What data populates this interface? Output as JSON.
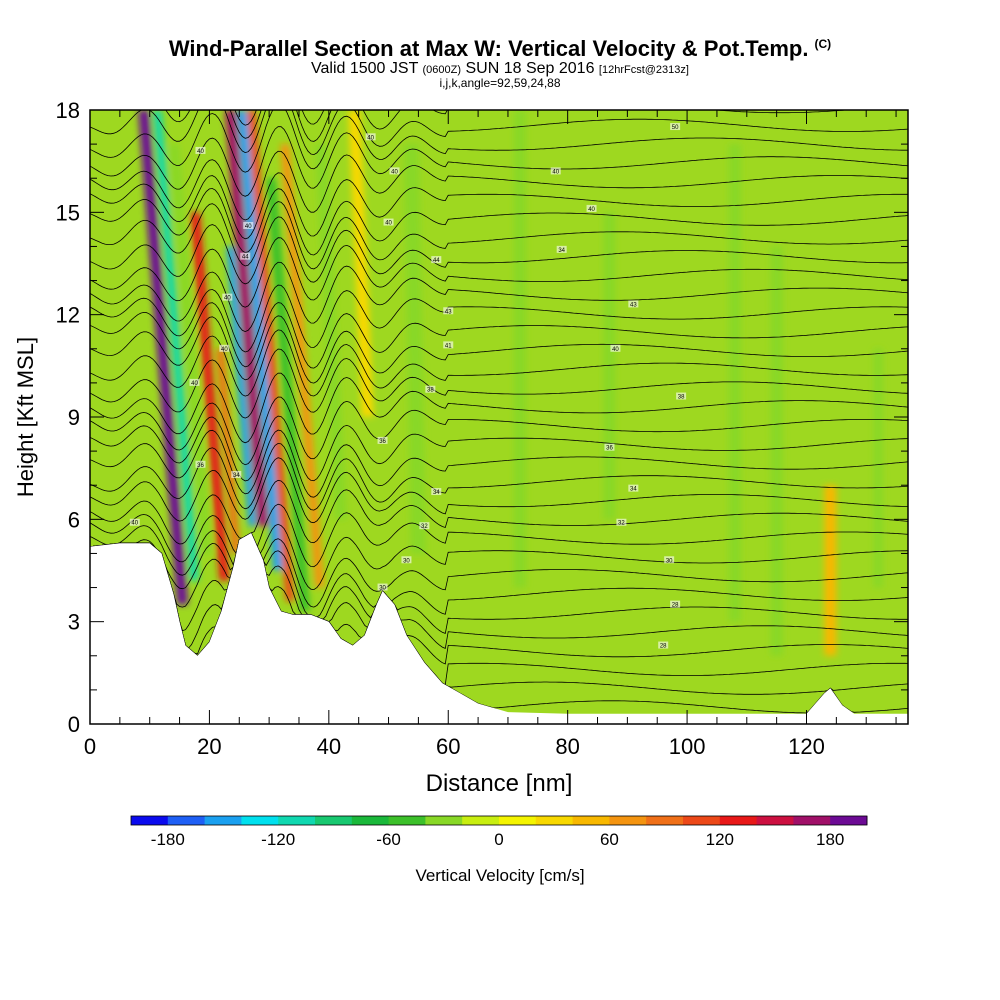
{
  "chart_data": {
    "type": "heatmap",
    "title": "Wind-Parallel Section at Max W: Vertical Velocity & Pot.Temp.",
    "title_mark": "(C)",
    "subtitle_main": "Valid 1500 JST",
    "subtitle_utc": "(0600Z)",
    "subtitle_date": "SUN 18 Sep 2016",
    "subtitle_fcst": "[12hrFcst@2313z]",
    "subtitle2": "i,j,k,angle=92,59,24,88",
    "xlabel": "Distance [nm]",
    "ylabel": "Height [Kft MSL]",
    "xlim": [
      0,
      137
    ],
    "ylim": [
      0,
      18
    ],
    "x_ticks": [
      "0",
      "20",
      "40",
      "60",
      "80",
      "100",
      "120"
    ],
    "y_ticks": [
      "0",
      "3",
      "6",
      "9",
      "12",
      "15",
      "18"
    ],
    "colorbar": {
      "label": "Vertical Velocity [cm/s]",
      "tick_labels": [
        "-180",
        "-120",
        "-60",
        "0",
        "60",
        "120",
        "180"
      ],
      "colors": [
        "#0a0aee",
        "#1e5ff5",
        "#1aa0f0",
        "#00e0ee",
        "#10d8b0",
        "#18c870",
        "#1ab83a",
        "#3cc02a",
        "#88d826",
        "#c8ee10",
        "#f4f400",
        "#f8d800",
        "#f8b800",
        "#f49410",
        "#f07018",
        "#ec4818",
        "#e81818",
        "#cc1040",
        "#a01068",
        "#6c0a94"
      ]
    },
    "terrain_profile": [
      [
        0,
        5.2
      ],
      [
        5,
        5.3
      ],
      [
        10,
        5.3
      ],
      [
        12,
        5.0
      ],
      [
        14,
        3.8
      ],
      [
        15,
        3.0
      ],
      [
        16,
        2.3
      ],
      [
        18,
        2.0
      ],
      [
        20,
        2.4
      ],
      [
        22,
        3.3
      ],
      [
        24,
        4.6
      ],
      [
        25,
        5.4
      ],
      [
        27,
        5.6
      ],
      [
        29,
        4.8
      ],
      [
        30,
        4.0
      ],
      [
        32,
        3.3
      ],
      [
        34,
        3.2
      ],
      [
        37,
        3.2
      ],
      [
        40,
        3.0
      ],
      [
        42,
        2.5
      ],
      [
        44,
        2.3
      ],
      [
        46,
        2.6
      ],
      [
        48,
        3.5
      ],
      [
        49,
        3.9
      ],
      [
        51,
        3.5
      ],
      [
        53,
        2.6
      ],
      [
        56,
        1.8
      ],
      [
        59,
        1.2
      ],
      [
        62,
        0.9
      ],
      [
        65,
        0.6
      ],
      [
        70,
        0.35
      ],
      [
        80,
        0.3
      ],
      [
        100,
        0.3
      ],
      [
        120,
        0.3
      ],
      [
        123,
        0.9
      ],
      [
        124,
        1.05
      ],
      [
        126,
        0.55
      ],
      [
        128,
        0.3
      ],
      [
        137,
        0.3
      ]
    ],
    "vertical_velocity_bands": [
      {
        "x": 15.5,
        "top": 18,
        "bottom": 3.5,
        "slope": 0.45,
        "w": 200,
        "width": 1.8
      },
      {
        "x": 17.5,
        "top": 18,
        "bottom": 4.2,
        "slope": 0.45,
        "w": -120,
        "width": 1.4
      },
      {
        "x": 19.5,
        "top": 17,
        "bottom": 5.0,
        "slope": 0.45,
        "w": -40,
        "width": 1.6
      },
      {
        "x": 22.5,
        "top": 15,
        "bottom": 4.2,
        "slope": 0.45,
        "w": 120,
        "width": 1.6
      },
      {
        "x": 24.5,
        "top": 11,
        "bottom": 5.0,
        "slope": 0.45,
        "w": 80,
        "width": 1.3
      },
      {
        "x": 27.2,
        "top": 14,
        "bottom": 5.8,
        "slope": 0.45,
        "w": -150,
        "width": 1.3
      },
      {
        "x": 29.0,
        "top": 18,
        "bottom": 5.8,
        "slope": 0.45,
        "w": 160,
        "width": 1.8
      },
      {
        "x": 31.5,
        "top": 18,
        "bottom": 4.5,
        "slope": 0.45,
        "w": -160,
        "width": 1.6
      },
      {
        "x": 33.5,
        "top": 18,
        "bottom": 3.6,
        "slope": 0.45,
        "w": 110,
        "width": 1.4
      },
      {
        "x": 36.0,
        "top": 16,
        "bottom": 3.3,
        "slope": 0.45,
        "w": -50,
        "width": 1.7
      },
      {
        "x": 38.5,
        "top": 17,
        "bottom": 4.0,
        "slope": 0.45,
        "w": 60,
        "width": 1.5
      },
      {
        "x": 42.0,
        "top": 17,
        "bottom": 6.0,
        "slope": 0.3,
        "w": -30,
        "width": 2.0
      },
      {
        "x": 46.5,
        "top": 18,
        "bottom": 9.0,
        "slope": 0.25,
        "w": 35,
        "width": 2.0
      },
      {
        "x": 55.0,
        "top": 17,
        "bottom": 5.0,
        "slope": 0.1,
        "w": -35,
        "width": 2.5
      },
      {
        "x": 72.0,
        "top": 18,
        "bottom": 4.0,
        "slope": 0.0,
        "w": -30,
        "width": 2.0
      },
      {
        "x": 87.0,
        "top": 15,
        "bottom": 6.0,
        "slope": 0.0,
        "w": -30,
        "width": 2.0
      },
      {
        "x": 108.0,
        "top": 17,
        "bottom": 3.0,
        "slope": 0.0,
        "w": -25,
        "width": 2.0
      },
      {
        "x": 115.0,
        "top": 14,
        "bottom": 2.0,
        "slope": 0.0,
        "w": -25,
        "width": 2.0
      },
      {
        "x": 124.0,
        "top": 7,
        "bottom": 2.0,
        "slope": 0.0,
        "w": 50,
        "width": 2.0
      },
      {
        "x": 132.0,
        "top": 11,
        "bottom": 4.0,
        "slope": 0.0,
        "w": -40,
        "width": 1.5
      }
    ],
    "isentrope_labels": [
      {
        "x": 18.5,
        "y": 16.8,
        "label": "40"
      },
      {
        "x": 47,
        "y": 17.2,
        "label": "40"
      },
      {
        "x": 98,
        "y": 17.5,
        "label": "50"
      },
      {
        "x": 51,
        "y": 16.2,
        "label": "40"
      },
      {
        "x": 78,
        "y": 16.2,
        "label": "40"
      },
      {
        "x": 26.5,
        "y": 14.6,
        "label": "40"
      },
      {
        "x": 50,
        "y": 14.7,
        "label": "40"
      },
      {
        "x": 84,
        "y": 15.1,
        "label": "40"
      },
      {
        "x": 26,
        "y": 13.7,
        "label": "44"
      },
      {
        "x": 58,
        "y": 13.6,
        "label": "44"
      },
      {
        "x": 79,
        "y": 13.9,
        "label": "34"
      },
      {
        "x": 23,
        "y": 12.5,
        "label": "40"
      },
      {
        "x": 60,
        "y": 12.1,
        "label": "43"
      },
      {
        "x": 91,
        "y": 12.3,
        "label": "43"
      },
      {
        "x": 22.5,
        "y": 11.0,
        "label": "40"
      },
      {
        "x": 60,
        "y": 11.1,
        "label": "41"
      },
      {
        "x": 88,
        "y": 11.0,
        "label": "40"
      },
      {
        "x": 17.5,
        "y": 10.0,
        "label": "40"
      },
      {
        "x": 57,
        "y": 9.8,
        "label": "38"
      },
      {
        "x": 99,
        "y": 9.6,
        "label": "38"
      },
      {
        "x": 49,
        "y": 8.3,
        "label": "36"
      },
      {
        "x": 87,
        "y": 8.1,
        "label": "36"
      },
      {
        "x": 18.5,
        "y": 7.6,
        "label": "36"
      },
      {
        "x": 24.5,
        "y": 7.3,
        "label": "34"
      },
      {
        "x": 58,
        "y": 6.8,
        "label": "34"
      },
      {
        "x": 91,
        "y": 6.9,
        "label": "34"
      },
      {
        "x": 7.5,
        "y": 5.9,
        "label": "40"
      },
      {
        "x": 56,
        "y": 5.8,
        "label": "32"
      },
      {
        "x": 89,
        "y": 5.9,
        "label": "32"
      },
      {
        "x": 53,
        "y": 4.8,
        "label": "30"
      },
      {
        "x": 97,
        "y": 4.8,
        "label": "30"
      },
      {
        "x": 49,
        "y": 4.0,
        "label": "30"
      },
      {
        "x": 98,
        "y": 3.5,
        "label": "28"
      },
      {
        "x": 96,
        "y": 2.3,
        "label": "28"
      }
    ]
  }
}
